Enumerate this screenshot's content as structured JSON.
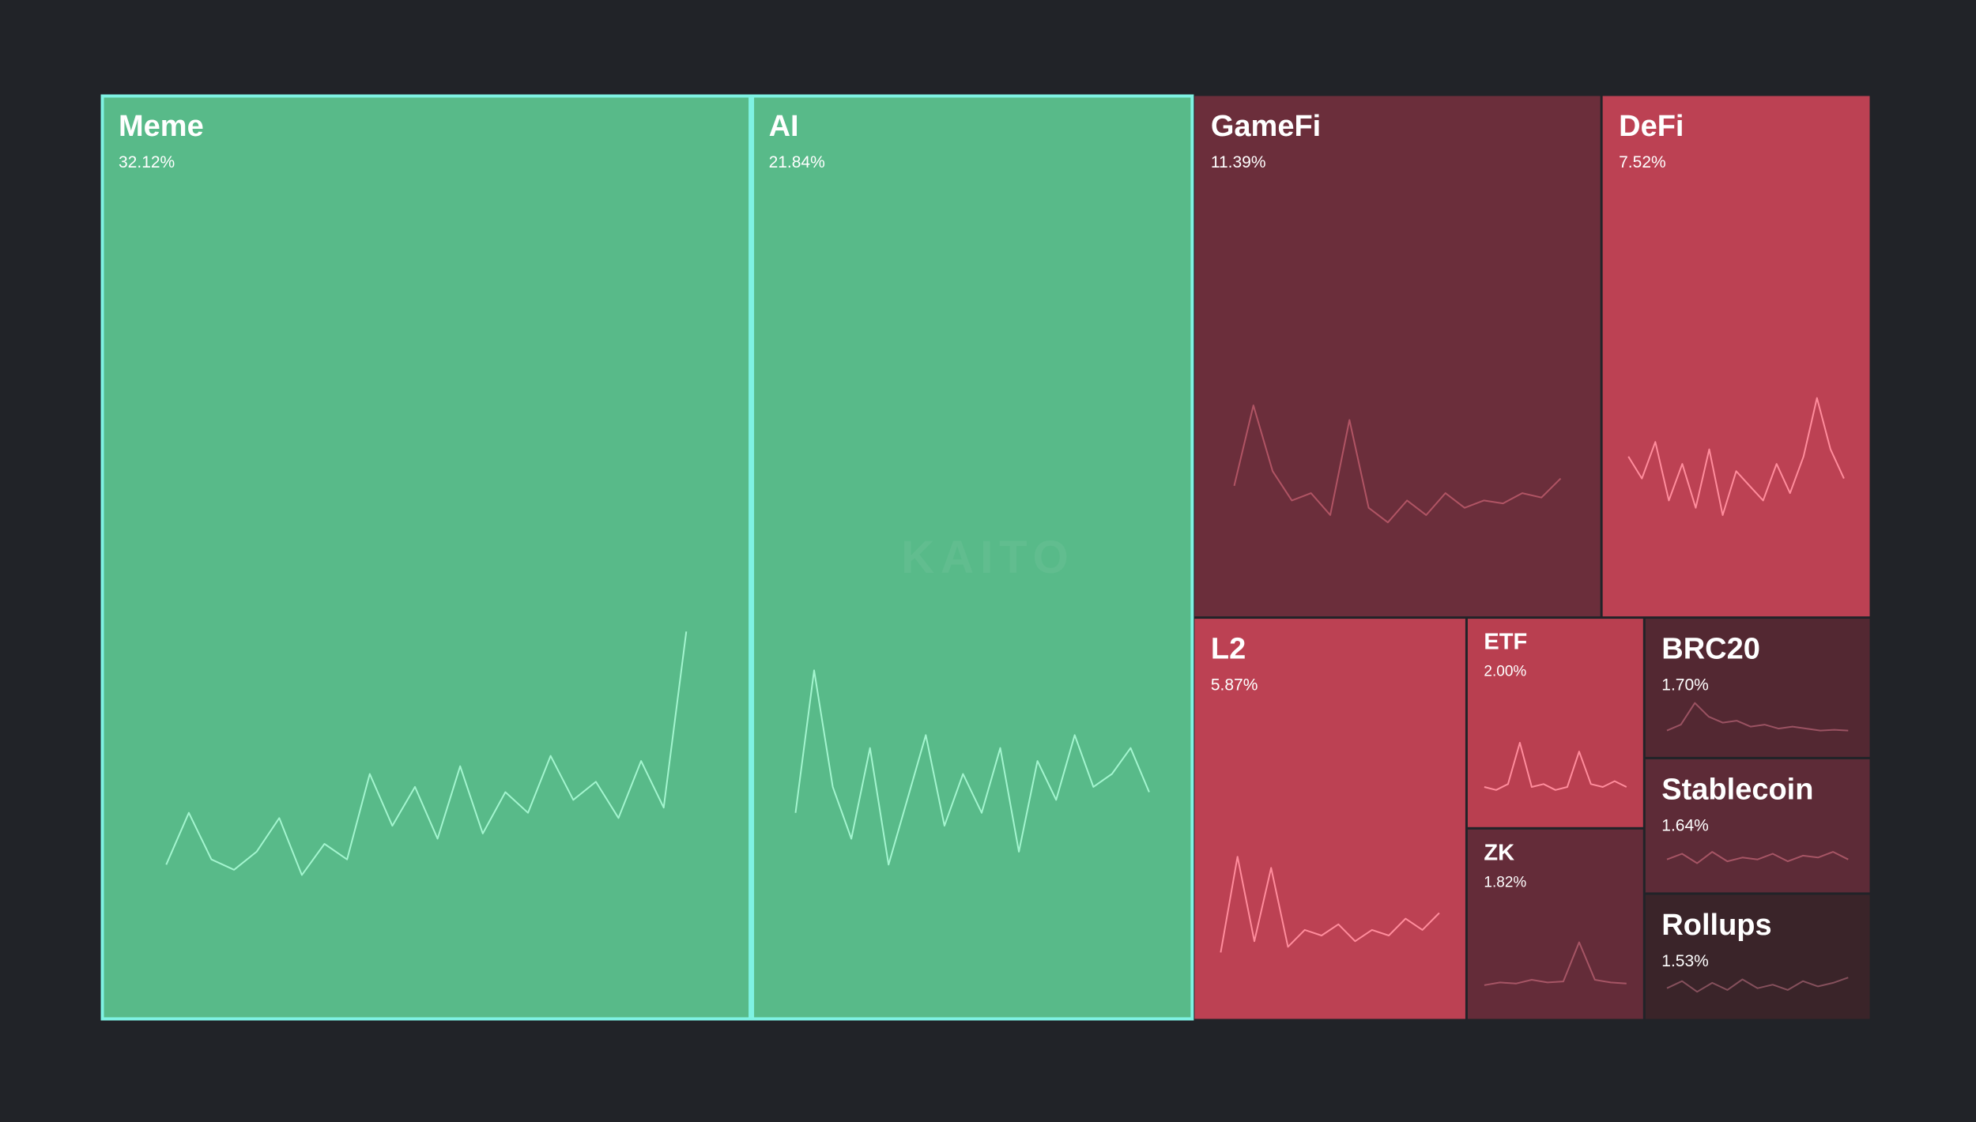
{
  "chart_data": {
    "type": "treemap",
    "watermark": "KAITO",
    "items": [
      {
        "name": "Meme",
        "value": 32.12,
        "value_label": "32.12%",
        "color": "#58ba89",
        "line_color": "#a3f5cf",
        "highlight": true,
        "spark": [
          10,
          30,
          12,
          8,
          15,
          28,
          6,
          18,
          12,
          45,
          25,
          40,
          20,
          48,
          22,
          38,
          30,
          52,
          35,
          42,
          28,
          50,
          32,
          100
        ]
      },
      {
        "name": "AI",
        "value": 21.84,
        "value_label": "21.84%",
        "color": "#58ba89",
        "line_color": "#a3f5cf",
        "highlight": true,
        "spark": [
          30,
          85,
          40,
          20,
          55,
          10,
          35,
          60,
          25,
          45,
          30,
          55,
          15,
          50,
          35,
          60,
          40,
          45,
          55,
          38
        ]
      },
      {
        "name": "GameFi",
        "value": 11.39,
        "value_label": "11.39%",
        "color": "#6b2e3b",
        "line_color": "#b05464",
        "highlight": false,
        "spark": [
          40,
          95,
          50,
          30,
          35,
          20,
          85,
          25,
          15,
          30,
          20,
          35,
          25,
          30,
          28,
          35,
          32,
          45
        ]
      },
      {
        "name": "DeFi",
        "value": 7.52,
        "value_label": "7.52%",
        "color": "#bc4153",
        "line_color": "#ff8c9c",
        "highlight": false,
        "spark": [
          60,
          45,
          70,
          30,
          55,
          25,
          65,
          20,
          50,
          40,
          30,
          55,
          35,
          60,
          100,
          65,
          45
        ]
      },
      {
        "name": "L2",
        "value": 5.87,
        "value_label": "5.87%",
        "color": "#bc4153",
        "line_color": "#ff8c9c",
        "highlight": false,
        "spark": [
          10,
          95,
          20,
          85,
          15,
          30,
          25,
          35,
          20,
          30,
          25,
          40,
          30,
          45
        ]
      },
      {
        "name": "ETF",
        "value": 2.0,
        "value_label": "2.00%",
        "color": "#b93f50",
        "line_color": "#ff8c9c",
        "highlight": false,
        "spark": [
          20,
          15,
          25,
          95,
          20,
          25,
          15,
          20,
          80,
          25,
          20,
          30,
          20
        ]
      },
      {
        "name": "ZK",
        "value": 1.82,
        "value_label": "1.82%",
        "color": "#642c39",
        "line_color": "#a65565",
        "highlight": false,
        "spark": [
          15,
          20,
          18,
          25,
          20,
          22,
          95,
          25,
          20,
          18
        ]
      },
      {
        "name": "BRC20",
        "value": 1.7,
        "value_label": "1.70%",
        "color": "#532832",
        "line_color": "#9a5262",
        "highlight": false,
        "spark": [
          20,
          35,
          90,
          55,
          40,
          45,
          30,
          35,
          25,
          30,
          25,
          20,
          22,
          20
        ]
      },
      {
        "name": "Stablecoin",
        "value": 1.64,
        "value_label": "1.64%",
        "color": "#5d2b37",
        "line_color": "#a65565",
        "highlight": false,
        "spark": [
          40,
          55,
          30,
          60,
          35,
          45,
          40,
          55,
          35,
          50,
          45,
          60,
          40
        ]
      },
      {
        "name": "Rollups",
        "value": 1.53,
        "value_label": "1.53%",
        "color": "#3a2429",
        "line_color": "#85505c",
        "highlight": false,
        "spark": [
          40,
          60,
          30,
          55,
          35,
          65,
          40,
          50,
          35,
          60,
          45,
          55,
          70
        ]
      }
    ]
  }
}
